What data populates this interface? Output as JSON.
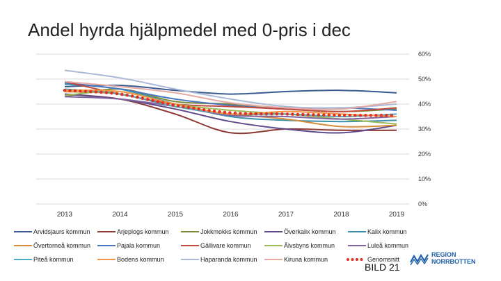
{
  "slide": {
    "title": "Andel hyrda hjälpmedel med 0-pris i dec",
    "footer": "BILD 21"
  },
  "logo": {
    "line1": "REGION",
    "line2": "NORRBOTTEN"
  },
  "colors": {
    "accent": "#e03020",
    "grid": "#d9d9d9"
  },
  "chart_data": {
    "type": "line",
    "title": "Andel hyrda hjälpmedel med 0-pris i dec",
    "x": [
      "2013",
      "2014",
      "2015",
      "2016",
      "2017",
      "2018",
      "2019"
    ],
    "ylim": [
      0,
      60
    ],
    "yticks": [
      0,
      10,
      20,
      30,
      40,
      50,
      60
    ],
    "ytick_labels": [
      "0%",
      "10%",
      "20%",
      "30%",
      "40%",
      "50%",
      "60%"
    ],
    "y_axis_side": "right",
    "grid": true,
    "legend_position": "bottom",
    "series": [
      {
        "name": "Arvidsjaurs kommun",
        "color": "#3a5a92",
        "style": "line",
        "values": [
          47,
          47.5,
          45.5,
          44,
          45,
          45.5,
          44.5
        ]
      },
      {
        "name": "Arjeplogs kommun",
        "color": "#8e3b35",
        "style": "line",
        "values": [
          44,
          42,
          36,
          28.5,
          30,
          29.5,
          29.5
        ]
      },
      {
        "name": "Jokkmokks kommun",
        "color": "#7a8c3a",
        "style": "line",
        "values": [
          43,
          46,
          41,
          40,
          38,
          37,
          38
        ]
      },
      {
        "name": "Överkalix kommun",
        "color": "#5e4a8a",
        "style": "line",
        "values": [
          44,
          42,
          38,
          33,
          30,
          28.5,
          31.5
        ]
      },
      {
        "name": "Kalix kommun",
        "color": "#3a8fa8",
        "style": "line",
        "values": [
          48,
          46,
          40,
          35,
          33.5,
          33,
          33.5
        ]
      },
      {
        "name": "Övertorneå kommun",
        "color": "#d98a3a",
        "style": "line",
        "values": [
          45,
          44,
          39,
          36,
          34,
          31,
          31.5
        ]
      },
      {
        "name": "Pajala kommun",
        "color": "#4a78c0",
        "style": "line",
        "values": [
          48.5,
          46,
          42,
          39.5,
          38,
          38.5,
          37.5
        ]
      },
      {
        "name": "Gällivare kommun",
        "color": "#c04a40",
        "style": "line",
        "values": [
          49,
          44,
          40,
          39,
          38,
          37,
          38.5
        ]
      },
      {
        "name": "Älvsbyns kommun",
        "color": "#9cbb59",
        "style": "line",
        "values": [
          43.5,
          45,
          40,
          37.5,
          36,
          34,
          32
        ]
      },
      {
        "name": "Luleå kommun",
        "color": "#8064a2",
        "style": "line",
        "values": [
          43,
          42,
          39,
          35.5,
          35,
          34,
          35
        ]
      },
      {
        "name": "Piteå kommun",
        "color": "#4bacc6",
        "style": "line",
        "values": [
          46,
          44,
          39,
          36,
          36,
          35,
          36
        ]
      },
      {
        "name": "Bodens kommun",
        "color": "#f79646",
        "style": "line",
        "values": [
          45.5,
          45,
          40,
          36,
          37,
          36,
          35
        ]
      },
      {
        "name": "Haparanda kommun",
        "color": "#a9b8d4",
        "style": "line",
        "values": [
          53.5,
          50.5,
          46,
          42,
          39,
          38.5,
          40
        ]
      },
      {
        "name": "Kiruna kommun",
        "color": "#e6a9a3",
        "style": "line",
        "values": [
          49,
          47,
          44.5,
          40.5,
          38.5,
          38,
          41
        ]
      },
      {
        "name": "Genomsnitt",
        "color": "#e03020",
        "style": "dotted",
        "values": [
          45.5,
          44,
          39.5,
          36.5,
          36,
          35.5,
          35.5
        ]
      }
    ]
  }
}
